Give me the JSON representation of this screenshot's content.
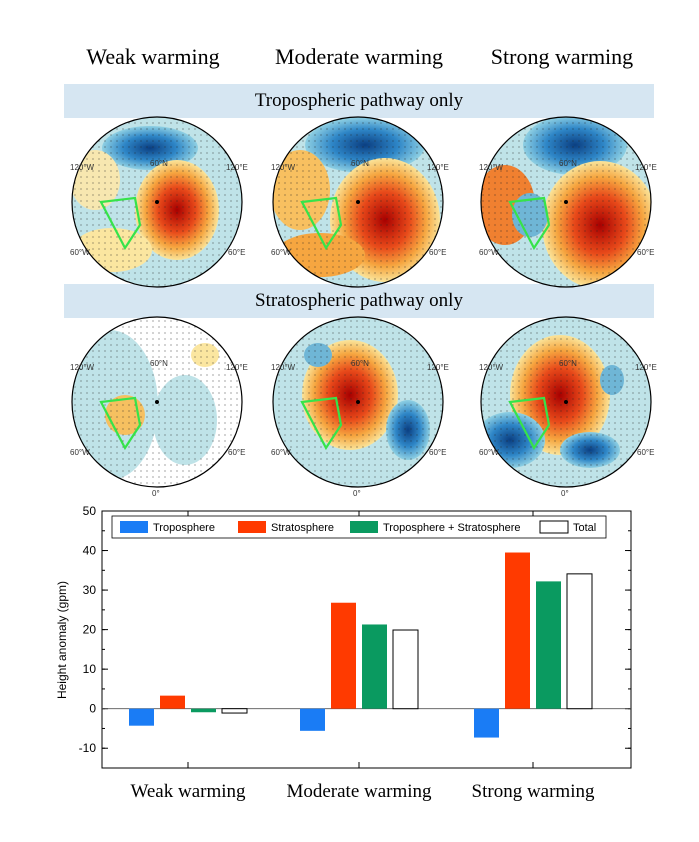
{
  "column_titles": [
    "Weak warming",
    "Moderate warming",
    "Strong warming"
  ],
  "rows": [
    {
      "title": "Tropospheric pathway only"
    },
    {
      "title": "Stratospheric pathway only"
    }
  ],
  "map_labels": {
    "lon_w120": "120°W",
    "lon_e120": "120°E",
    "lon_w60": "60°W",
    "lon_e60": "60°E",
    "lat60": "60°N",
    "lon0": "0°"
  },
  "colors": {
    "troposphere": "#1a7cf5",
    "stratosphere": "#ff3a00",
    "combined": "#0a9a60",
    "total": "#ffffff",
    "band": "#d6e6f2"
  },
  "chart_data": {
    "type": "bar",
    "categories": [
      "Weak warming",
      "Moderate warming",
      "Strong warming"
    ],
    "series": [
      {
        "name": "Troposphere",
        "values": [
          -4.3,
          -5.6,
          -7.3
        ]
      },
      {
        "name": "Stratosphere",
        "values": [
          3.3,
          26.8,
          39.5
        ]
      },
      {
        "name": "Troposphere + Stratosphere",
        "values": [
          -0.9,
          21.3,
          32.2
        ]
      },
      {
        "name": "Total",
        "values": [
          -1.1,
          19.9,
          34.1
        ]
      }
    ],
    "ylabel": "Height anomaly (gpm)",
    "xlabel": "",
    "ylim": [
      -15,
      50
    ],
    "yticks": [
      -10,
      0,
      10,
      20,
      30,
      40,
      50
    ],
    "legend_position": "top"
  }
}
